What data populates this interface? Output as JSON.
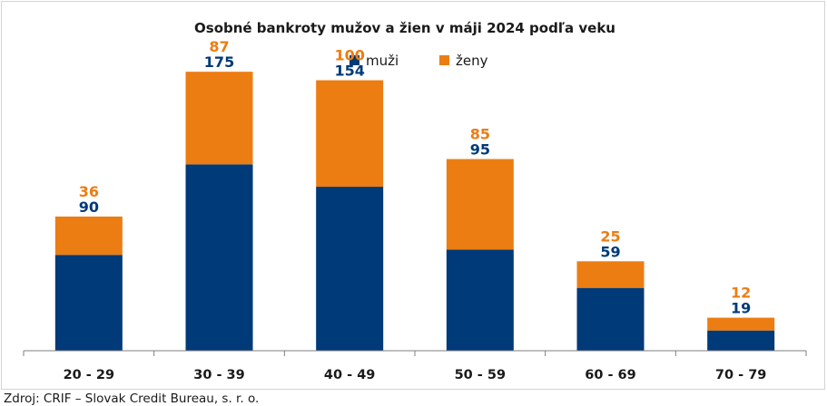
{
  "chart_data": {
    "type": "bar",
    "stacked": true,
    "title": "Osobné bankroty mužov a žien v máji 2024 podľa veku",
    "categories": [
      "20 - 29",
      "30 - 39",
      "40 - 49",
      "50 - 59",
      "60 - 69",
      "70 - 79"
    ],
    "series": [
      {
        "name": "muži",
        "color": "#003a78",
        "values": [
          90,
          175,
          154,
          95,
          59,
          19
        ]
      },
      {
        "name": "ženy",
        "color": "#ec7d13",
        "values": [
          36,
          87,
          100,
          85,
          25,
          12
        ]
      }
    ],
    "ylim": [
      0,
      280
    ],
    "xlabel": "",
    "ylabel": "",
    "grid": false,
    "legend": "top-center",
    "data_labels": true
  },
  "source": "Zdroj: CRIF – Slovak Credit Bureau, s. r. o."
}
